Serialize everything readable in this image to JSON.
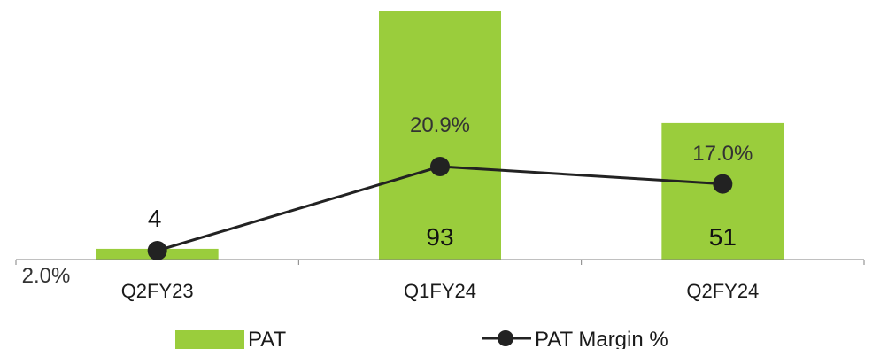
{
  "chart_data": {
    "type": "bar+line",
    "categories": [
      "Q2FY23",
      "Q1FY24",
      "Q2FY24"
    ],
    "series": [
      {
        "name": "PAT",
        "type": "bar",
        "values": [
          4,
          93,
          51
        ],
        "labels": [
          "4",
          "93",
          "51"
        ],
        "color": "#9ACD3C"
      },
      {
        "name": "PAT Margin %",
        "type": "line",
        "values": [
          2.0,
          20.9,
          17.0
        ],
        "labels": [
          "2.0%",
          "20.9%",
          "17.0%"
        ],
        "color": "#222222"
      }
    ],
    "bar_axis_range": [
      0,
      93
    ],
    "line_axis_range": [
      2.0,
      20.9
    ],
    "legend_position": "bottom",
    "grid": false
  }
}
